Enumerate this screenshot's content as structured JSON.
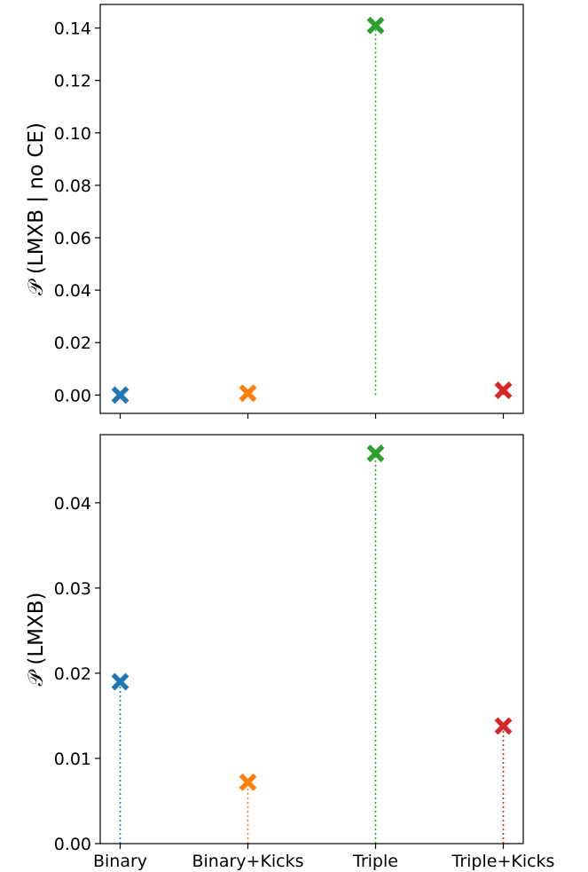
{
  "chart_data": [
    {
      "type": "scatter",
      "title": "",
      "xlabel": "",
      "ylabel": "𝒫 (LMXB | no CE)",
      "categories": [
        "Binary",
        "Binary+Kicks",
        "Triple",
        "Triple+Kicks"
      ],
      "show_x_tick_labels": false,
      "values": [
        0.0,
        0.0007,
        0.141,
        0.0018
      ],
      "colors": [
        "#1f77b4",
        "#ff7f0e",
        "#2ca02c",
        "#d62728"
      ],
      "ylim": [
        -0.007,
        0.149
      ],
      "yticks": [
        0.0,
        0.02,
        0.04,
        0.06,
        0.08,
        0.1,
        0.12,
        0.14
      ],
      "ytick_labels": [
        "0.00",
        "0.02",
        "0.04",
        "0.06",
        "0.08",
        "0.10",
        "0.12",
        "0.14"
      ],
      "marker": "X",
      "stems": "dotted",
      "grid": false
    },
    {
      "type": "scatter",
      "title": "",
      "xlabel": "",
      "ylabel": "𝒫 (LMXB)",
      "categories": [
        "Binary",
        "Binary+Kicks",
        "Triple",
        "Triple+Kicks"
      ],
      "show_x_tick_labels": true,
      "values": [
        0.019,
        0.0072,
        0.0458,
        0.0138
      ],
      "colors": [
        "#1f77b4",
        "#ff7f0e",
        "#2ca02c",
        "#d62728"
      ],
      "ylim": [
        0.0,
        0.048
      ],
      "yticks": [
        0.0,
        0.01,
        0.02,
        0.03,
        0.04
      ],
      "ytick_labels": [
        "0.00",
        "0.01",
        "0.02",
        "0.03",
        "0.04"
      ],
      "marker": "X",
      "stems": "dotted",
      "grid": false
    }
  ]
}
